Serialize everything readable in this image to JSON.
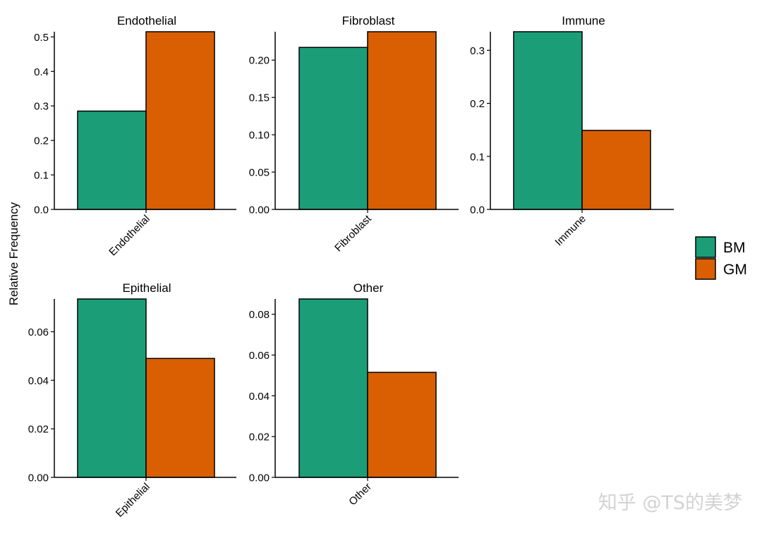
{
  "chart_data": {
    "type": "bar",
    "ylabel": "Relative Frequency",
    "legend": {
      "placement": "right",
      "entries": [
        {
          "name": "BM",
          "color": "#1b9e77"
        },
        {
          "name": "GM",
          "color": "#d95f02"
        }
      ]
    },
    "series_names": [
      "BM",
      "GM"
    ],
    "grid": false,
    "panels": [
      {
        "title": "Endothelial",
        "category": "Endothelial",
        "values": [
          0.285,
          0.515
        ],
        "ylim": [
          0,
          0.515
        ],
        "ticks": [
          0,
          0.1,
          0.2,
          0.3,
          0.4,
          0.5
        ],
        "tick_labels": [
          "0.0",
          "0.1",
          "0.2",
          "0.3",
          "0.4",
          "0.5"
        ]
      },
      {
        "title": "Fibroblast",
        "category": "Fibroblast",
        "values": [
          0.217,
          0.238
        ],
        "ylim": [
          0,
          0.238
        ],
        "ticks": [
          0,
          0.05,
          0.1,
          0.15,
          0.2
        ],
        "tick_labels": [
          "0.00",
          "0.05",
          "0.10",
          "0.15",
          "0.20"
        ]
      },
      {
        "title": "Immune",
        "category": "Immune",
        "values": [
          0.335,
          0.149
        ],
        "ylim": [
          0,
          0.335
        ],
        "ticks": [
          0,
          0.1,
          0.2,
          0.3
        ],
        "tick_labels": [
          "0.0",
          "0.1",
          "0.2",
          "0.3"
        ]
      },
      {
        "title": "Epithelial",
        "category": "Epithelial",
        "values": [
          0.0735,
          0.049
        ],
        "ylim": [
          0,
          0.0735
        ],
        "ticks": [
          0,
          0.02,
          0.04,
          0.06
        ],
        "tick_labels": [
          "0.00",
          "0.02",
          "0.04",
          "0.06"
        ]
      },
      {
        "title": "Other",
        "category": "Other",
        "values": [
          0.0875,
          0.0515
        ],
        "ylim": [
          0,
          0.0875
        ],
        "ticks": [
          0,
          0.02,
          0.04,
          0.06,
          0.08
        ],
        "tick_labels": [
          "0.00",
          "0.02",
          "0.04",
          "0.06",
          "0.08"
        ]
      }
    ]
  },
  "watermark": "知乎 @TS的美梦"
}
